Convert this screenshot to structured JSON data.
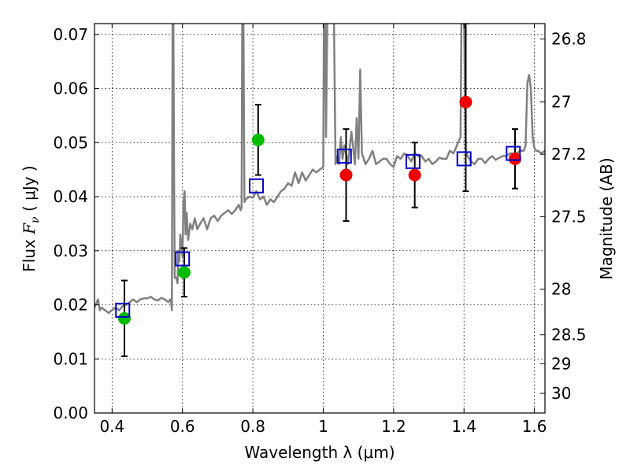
{
  "chart_data": {
    "type": "scatter",
    "xlabel": "Wavelength  λ (μm)",
    "ylabel": "Flux  F_ν  ( μJy )",
    "ylabel_parts": {
      "pre": "Flux  ",
      "sym": "F",
      "sub": "ν",
      "post": "  ( μJy )"
    },
    "y2label": "Magnitude (AB)",
    "xlim": [
      0.35,
      1.63
    ],
    "ylim": [
      0.0,
      0.072
    ],
    "xticks": [
      "0.4",
      "0.6",
      "0.8",
      "1",
      "1.2",
      "1.4",
      "1.6"
    ],
    "xtick_values": [
      0.4,
      0.6,
      0.8,
      1.0,
      1.2,
      1.4,
      1.6
    ],
    "yticks": [
      "0.00",
      "0.01",
      "0.02",
      "0.03",
      "0.04",
      "0.05",
      "0.06",
      "0.07"
    ],
    "ytick_values": [
      0.0,
      0.01,
      0.02,
      0.03,
      0.04,
      0.05,
      0.06,
      0.07
    ],
    "y2ticks": [
      {
        "label": "26.8",
        "flux": 0.06914
      },
      {
        "label": "27",
        "flux": 0.05751
      },
      {
        "label": "27.2",
        "flux": 0.04783
      },
      {
        "label": "27.5",
        "flux": 0.03631
      },
      {
        "label": "28",
        "flux": 0.02291
      },
      {
        "label": "28.5",
        "flux": 0.01445
      },
      {
        "label": "29",
        "flux": 0.00912
      },
      {
        "label": "30",
        "flux": 0.00363
      }
    ],
    "grid": true,
    "colors": {
      "spectrum": "#808080",
      "green_points": "#00bb00",
      "red_points": "#ee0000",
      "model_squares": "#0000cc",
      "errorbars": "#000000"
    },
    "series": [
      {
        "kind": "line",
        "points": [
          [
            0.35,
            0.0195
          ],
          [
            0.36,
            0.021
          ],
          [
            0.365,
            0.019
          ],
          [
            0.37,
            0.0195
          ],
          [
            0.38,
            0.019
          ],
          [
            0.39,
            0.0185
          ],
          [
            0.4,
            0.019
          ],
          [
            0.41,
            0.0195
          ],
          [
            0.42,
            0.019
          ],
          [
            0.43,
            0.0198
          ],
          [
            0.44,
            0.02
          ],
          [
            0.45,
            0.0205
          ],
          [
            0.46,
            0.021
          ],
          [
            0.47,
            0.0205
          ],
          [
            0.48,
            0.021
          ],
          [
            0.49,
            0.0212
          ],
          [
            0.5,
            0.0212
          ],
          [
            0.51,
            0.0215
          ],
          [
            0.52,
            0.021
          ],
          [
            0.53,
            0.0208
          ],
          [
            0.54,
            0.0213
          ],
          [
            0.55,
            0.021
          ],
          [
            0.56,
            0.0205
          ],
          [
            0.565,
            0.021
          ],
          [
            0.568,
            0.0205
          ],
          [
            0.57,
            0.019
          ],
          [
            0.572,
            0.075
          ],
          [
            0.574,
            0.075
          ],
          [
            0.576,
            0.045
          ],
          [
            0.578,
            0.025
          ],
          [
            0.582,
            0.025
          ],
          [
            0.586,
            0.024
          ],
          [
            0.588,
            0.03
          ],
          [
            0.591,
            0.028
          ],
          [
            0.594,
            0.033
          ],
          [
            0.597,
            0.031
          ],
          [
            0.6,
            0.029
          ],
          [
            0.603,
            0.039
          ],
          [
            0.606,
            0.041
          ],
          [
            0.609,
            0.033
          ],
          [
            0.612,
            0.037
          ],
          [
            0.616,
            0.032
          ],
          [
            0.622,
            0.035
          ],
          [
            0.628,
            0.034
          ],
          [
            0.635,
            0.036
          ],
          [
            0.642,
            0.034
          ],
          [
            0.65,
            0.035
          ],
          [
            0.66,
            0.036
          ],
          [
            0.67,
            0.034
          ],
          [
            0.68,
            0.036
          ],
          [
            0.69,
            0.0365
          ],
          [
            0.7,
            0.0355
          ],
          [
            0.71,
            0.0365
          ],
          [
            0.72,
            0.037
          ],
          [
            0.73,
            0.0375
          ],
          [
            0.74,
            0.0368
          ],
          [
            0.75,
            0.0375
          ],
          [
            0.76,
            0.0385
          ],
          [
            0.765,
            0.0375
          ],
          [
            0.768,
            0.038
          ],
          [
            0.77,
            0.075
          ],
          [
            0.773,
            0.075
          ],
          [
            0.776,
            0.039
          ],
          [
            0.78,
            0.0395
          ],
          [
            0.79,
            0.04
          ],
          [
            0.8,
            0.0398
          ],
          [
            0.81,
            0.041
          ],
          [
            0.82,
            0.0395
          ],
          [
            0.83,
            0.04
          ],
          [
            0.84,
            0.0385
          ],
          [
            0.85,
            0.0395
          ],
          [
            0.86,
            0.039
          ],
          [
            0.87,
            0.04
          ],
          [
            0.88,
            0.041
          ],
          [
            0.89,
            0.0415
          ],
          [
            0.9,
            0.0425
          ],
          [
            0.91,
            0.042
          ],
          [
            0.92,
            0.0445
          ],
          [
            0.93,
            0.0425
          ],
          [
            0.94,
            0.0445
          ],
          [
            0.95,
            0.043
          ],
          [
            0.96,
            0.044
          ],
          [
            0.97,
            0.045
          ],
          [
            0.98,
            0.0445
          ],
          [
            0.99,
            0.045
          ],
          [
            1.0,
            0.0455
          ],
          [
            1.002,
            0.075
          ],
          [
            1.005,
            0.075
          ],
          [
            1.008,
            0.051
          ],
          [
            1.012,
            0.075
          ],
          [
            1.03,
            0.075
          ],
          [
            1.035,
            0.046
          ],
          [
            1.04,
            0.0475
          ],
          [
            1.045,
            0.046
          ],
          [
            1.05,
            0.051
          ],
          [
            1.055,
            0.047
          ],
          [
            1.06,
            0.0495
          ],
          [
            1.07,
            0.046
          ],
          [
            1.08,
            0.052
          ],
          [
            1.09,
            0.046
          ],
          [
            1.095,
            0.0545
          ],
          [
            1.1,
            0.047
          ],
          [
            1.105,
            0.0635
          ],
          [
            1.11,
            0.048
          ],
          [
            1.12,
            0.046
          ],
          [
            1.13,
            0.047
          ],
          [
            1.14,
            0.0485
          ],
          [
            1.15,
            0.046
          ],
          [
            1.16,
            0.0465
          ],
          [
            1.17,
            0.047
          ],
          [
            1.18,
            0.047
          ],
          [
            1.19,
            0.046
          ],
          [
            1.2,
            0.0455
          ],
          [
            1.21,
            0.0475
          ],
          [
            1.22,
            0.047
          ],
          [
            1.23,
            0.048
          ],
          [
            1.24,
            0.0475
          ],
          [
            1.25,
            0.0465
          ],
          [
            1.26,
            0.048
          ],
          [
            1.27,
            0.0475
          ],
          [
            1.28,
            0.0475
          ],
          [
            1.29,
            0.0465
          ],
          [
            1.3,
            0.047
          ],
          [
            1.31,
            0.046
          ],
          [
            1.32,
            0.0465
          ],
          [
            1.33,
            0.0472
          ],
          [
            1.34,
            0.047
          ],
          [
            1.35,
            0.047
          ],
          [
            1.36,
            0.0485
          ],
          [
            1.37,
            0.048
          ],
          [
            1.38,
            0.0495
          ],
          [
            1.39,
            0.051
          ],
          [
            1.393,
            0.075
          ],
          [
            1.4,
            0.075
          ],
          [
            1.405,
            0.0485
          ],
          [
            1.41,
            0.0475
          ],
          [
            1.42,
            0.0465
          ],
          [
            1.43,
            0.046
          ],
          [
            1.44,
            0.047
          ],
          [
            1.45,
            0.047
          ],
          [
            1.46,
            0.0462
          ],
          [
            1.47,
            0.047
          ],
          [
            1.48,
            0.0475
          ],
          [
            1.49,
            0.0468
          ],
          [
            1.5,
            0.0472
          ],
          [
            1.51,
            0.0475
          ],
          [
            1.52,
            0.0475
          ],
          [
            1.53,
            0.048
          ],
          [
            1.54,
            0.048
          ],
          [
            1.55,
            0.048
          ],
          [
            1.56,
            0.0485
          ],
          [
            1.57,
            0.0485
          ],
          [
            1.575,
            0.0495
          ],
          [
            1.58,
            0.061
          ],
          [
            1.585,
            0.0625
          ],
          [
            1.59,
            0.06
          ],
          [
            1.595,
            0.051
          ],
          [
            1.6,
            0.049
          ],
          [
            1.605,
            0.0485
          ],
          [
            1.61,
            0.0485
          ],
          [
            1.62,
            0.048
          ],
          [
            1.63,
            0.0485
          ]
        ]
      },
      {
        "kind": "errorbar_points",
        "color_key": "green_points",
        "points": [
          {
            "x": 0.435,
            "y": 0.0175,
            "lo": 0.0105,
            "hi": 0.0245
          },
          {
            "x": 0.605,
            "y": 0.026,
            "lo": 0.0215,
            "hi": 0.0305
          },
          {
            "x": 0.815,
            "y": 0.0505,
            "lo": 0.044,
            "hi": 0.057
          }
        ]
      },
      {
        "kind": "errorbar_points",
        "color_key": "red_points",
        "points": [
          {
            "x": 1.065,
            "y": 0.044,
            "lo": 0.0355,
            "hi": 0.0525
          },
          {
            "x": 1.26,
            "y": 0.044,
            "lo": 0.038,
            "hi": 0.05
          },
          {
            "x": 1.405,
            "y": 0.0575,
            "lo": 0.041,
            "hi": 0.072
          },
          {
            "x": 1.545,
            "y": 0.047,
            "lo": 0.0415,
            "hi": 0.0525
          }
        ]
      },
      {
        "kind": "open_squares",
        "color_key": "model_squares",
        "points": [
          {
            "x": 0.43,
            "y": 0.019
          },
          {
            "x": 0.6,
            "y": 0.0285
          },
          {
            "x": 0.81,
            "y": 0.042
          },
          {
            "x": 1.06,
            "y": 0.0475
          },
          {
            "x": 1.255,
            "y": 0.0465
          },
          {
            "x": 1.4,
            "y": 0.047
          },
          {
            "x": 1.54,
            "y": 0.048
          }
        ]
      }
    ]
  }
}
